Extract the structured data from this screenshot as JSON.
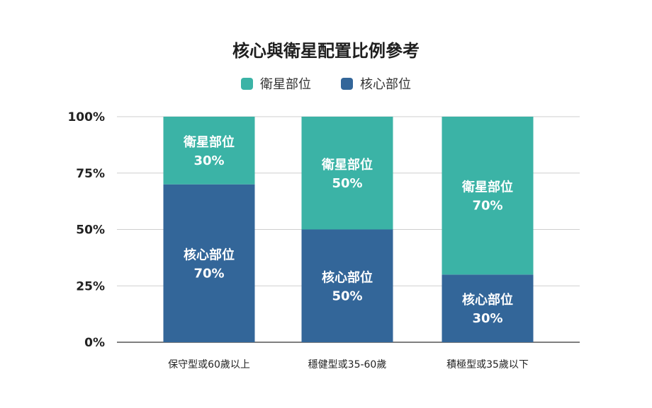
{
  "chart_data": {
    "type": "bar",
    "stacked": true,
    "title": "核心與衛星配置比例參考",
    "categories": [
      "保守型或60歲以上",
      "穩健型或35-60歲",
      "積極型或35歲以下"
    ],
    "series": [
      {
        "name": "核心部位",
        "values": [
          70,
          50,
          30
        ],
        "color": "#336699"
      },
      {
        "name": "衛星部位",
        "values": [
          30,
          50,
          70
        ],
        "color": "#3bb3a6"
      }
    ],
    "legend_order": [
      "衛星部位",
      "核心部位"
    ],
    "legend_position": "top-center",
    "ylim": [
      0,
      100
    ],
    "yticks": [
      0,
      25,
      50,
      75,
      100
    ],
    "ytick_labels": [
      "0%",
      "25%",
      "50%",
      "75%",
      "100%"
    ],
    "value_suffix": "%",
    "grid": true
  }
}
